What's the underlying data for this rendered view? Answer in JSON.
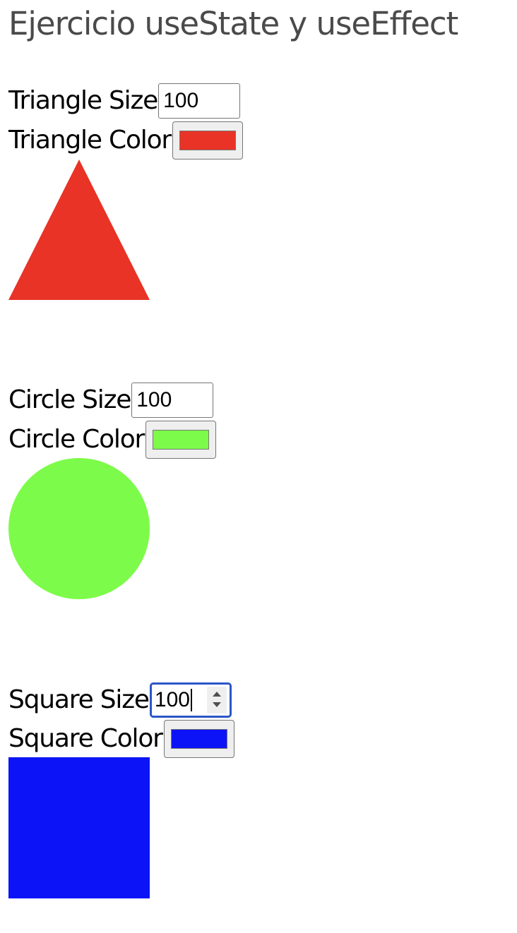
{
  "title": "Ejercicio useState y useEffect",
  "triangle": {
    "size_label": "Triangle Size",
    "size_value": "100",
    "color_label": "Triangle Color",
    "color": "#e83326"
  },
  "circle": {
    "size_label": "Circle Size",
    "size_value": "100",
    "color_label": "Circle Color",
    "color": "#7dfb4a"
  },
  "square": {
    "size_label": "Square Size",
    "size_value": "100",
    "color_label": "Square Color",
    "color": "#0c14f7"
  }
}
